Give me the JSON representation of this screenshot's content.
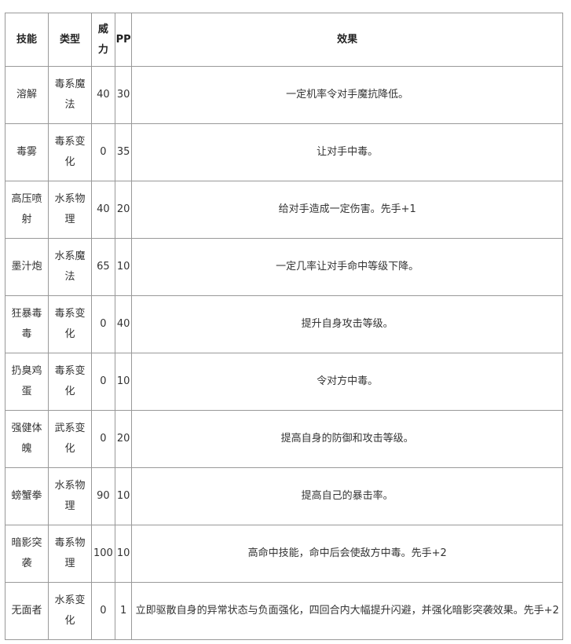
{
  "headers": [
    "技能",
    "类型",
    "威力",
    "PP",
    "效果"
  ],
  "rows": [
    [
      "溶解",
      "毒系魔法",
      "40",
      "30",
      "一定机率令对手魔抗降低。"
    ],
    [
      "毒雾",
      "毒系变化",
      "0",
      "35",
      "让对手中毒。"
    ],
    [
      "高压喷射",
      "水系物理",
      "40",
      "20",
      "给对手造成一定伤害。先手+1"
    ],
    [
      "墨汁炮",
      "水系魔法",
      "65",
      "10",
      "一定几率让对手命中等级下降。"
    ],
    [
      "狂暴毒毒",
      "毒系变化",
      "0",
      "40",
      "提升自身攻击等级。"
    ],
    [
      "扔臭鸡蛋",
      "毒系变化",
      "0",
      "10",
      "令对方中毒。"
    ],
    [
      "强健体魄",
      "武系变化",
      "0",
      "20",
      "提高自身的防御和攻击等级。"
    ],
    [
      "螃蟹拳",
      "水系物理",
      "90",
      "10",
      "提高自己的暴击率。"
    ],
    [
      "暗影突袭",
      "毒系物理",
      "100",
      "10",
      "高命中技能，命中后会使敌方中毒。先手+2"
    ],
    [
      "无面者",
      "水系变化",
      "0",
      "1",
      "立即驱散自身的异常状态与负面强化，四回合内大幅提升闪避，并强化暗影突袭效果。先手+2"
    ]
  ]
}
